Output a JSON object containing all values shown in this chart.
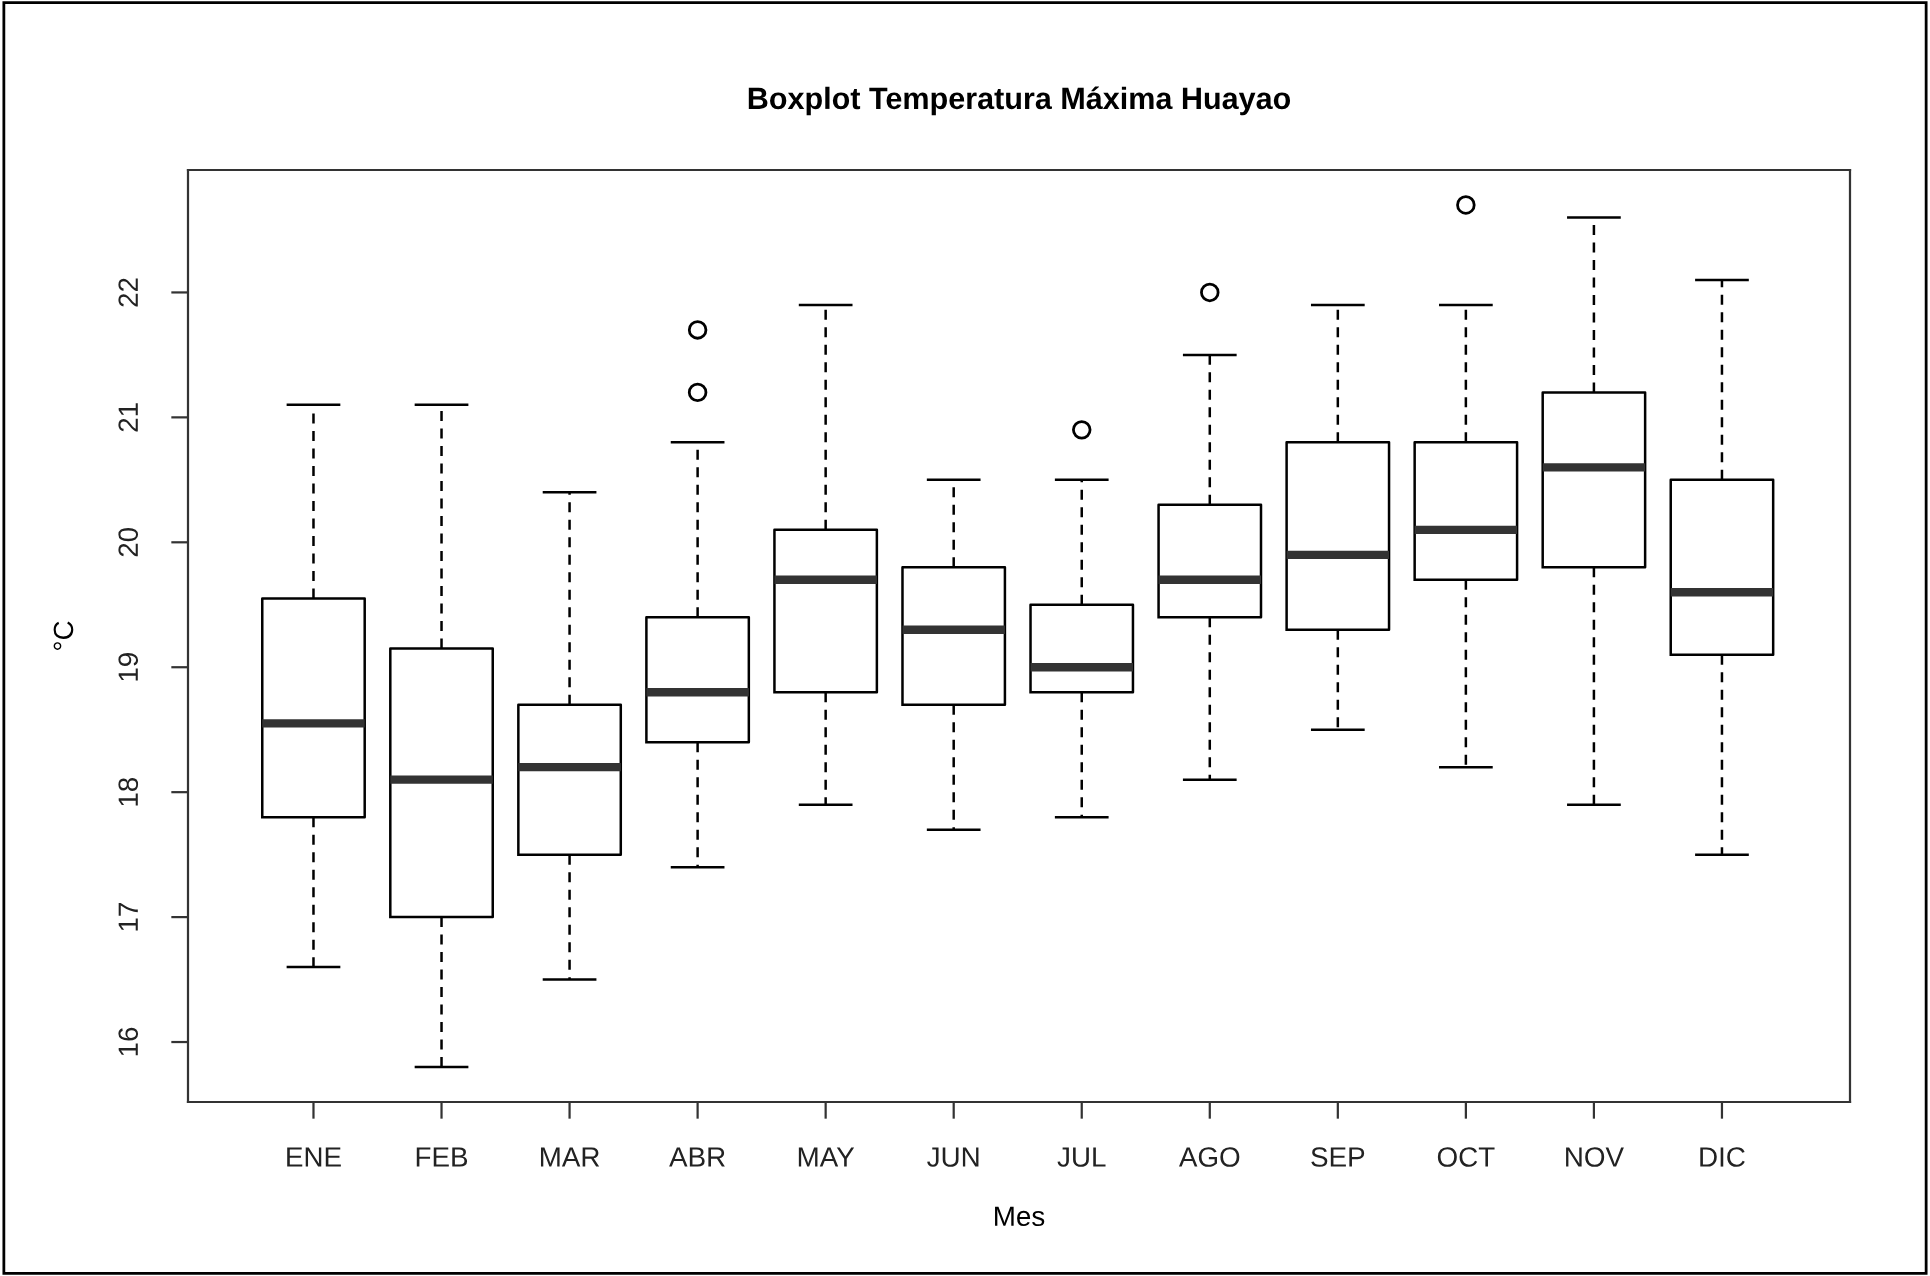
{
  "chart_data": {
    "type": "box",
    "title": "Boxplot Temperatura Máxima Huayao",
    "xlabel": "Mes",
    "ylabel": "°C",
    "categories": [
      "ENE",
      "FEB",
      "MAR",
      "ABR",
      "MAY",
      "JUN",
      "JUL",
      "AGO",
      "SEP",
      "OCT",
      "NOV",
      "DIC"
    ],
    "boxes": [
      {
        "low": 16.6,
        "q1": 17.8,
        "median": 18.55,
        "q3": 19.55,
        "high": 21.1
      },
      {
        "low": 15.8,
        "q1": 17.0,
        "median": 18.1,
        "q3": 19.15,
        "high": 21.1
      },
      {
        "low": 16.5,
        "q1": 17.5,
        "median": 18.2,
        "q3": 18.7,
        "high": 20.4
      },
      {
        "low": 17.4,
        "q1": 18.4,
        "median": 18.8,
        "q3": 19.4,
        "high": 20.8,
        "outliers": [
          21.2,
          21.7
        ]
      },
      {
        "low": 17.9,
        "q1": 18.8,
        "median": 19.7,
        "q3": 20.1,
        "high": 21.9
      },
      {
        "low": 17.7,
        "q1": 18.7,
        "median": 19.3,
        "q3": 19.8,
        "high": 20.5
      },
      {
        "low": 17.8,
        "q1": 18.8,
        "median": 19.0,
        "q3": 19.5,
        "high": 20.5,
        "outliers": [
          20.9
        ]
      },
      {
        "low": 18.1,
        "q1": 19.4,
        "median": 19.7,
        "q3": 20.3,
        "high": 21.5,
        "outliers": [
          22.0
        ]
      },
      {
        "low": 18.5,
        "q1": 19.3,
        "median": 19.9,
        "q3": 20.8,
        "high": 21.9
      },
      {
        "low": 18.2,
        "q1": 19.7,
        "median": 20.1,
        "q3": 20.8,
        "high": 21.9,
        "outliers": [
          22.7
        ]
      },
      {
        "low": 17.9,
        "q1": 19.8,
        "median": 20.6,
        "q3": 21.2,
        "high": 22.6
      },
      {
        "low": 17.5,
        "q1": 19.1,
        "median": 19.6,
        "q3": 20.5,
        "high": 22.1
      }
    ],
    "color": "#000000",
    "ylim": [
      15.52,
      22.98
    ],
    "yticks": [
      16,
      17,
      18,
      19,
      20,
      21,
      22
    ],
    "grid": false
  }
}
